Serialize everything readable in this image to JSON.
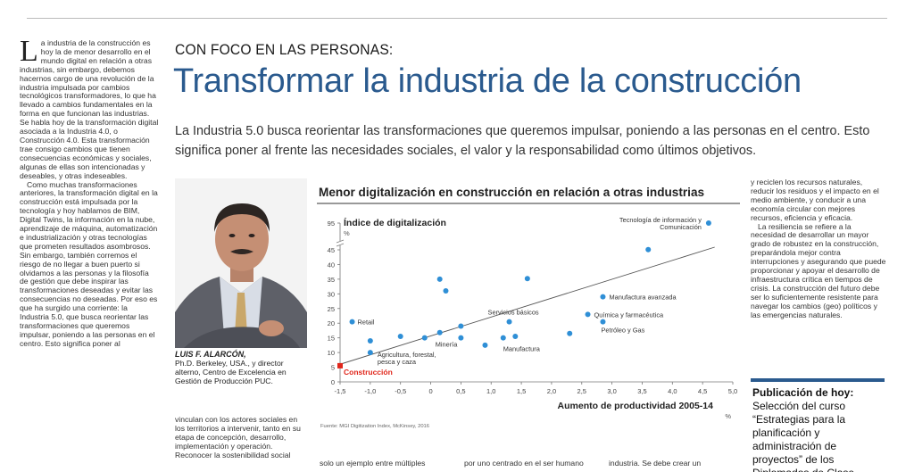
{
  "article": {
    "left_column_paragraph_1": "a industria de la construcción es hoy la de menor desarrollo en el mundo digital en relación a otras industrias, sin embargo, debemos hacernos cargo de una revolución de la industria impulsada por cambios tecnológicos transformadores, lo que ha llevado a cambios fundamentales en la forma en que funcionan las industrias. Se habla hoy de la transformación digital asociada a la Industria 4.0, o Construcción 4.0. Esta transformación trae consigo cambios que tienen consecuencias económicas y sociales, algunas de ellas son intencionadas y deseables, y otras indeseables.",
    "left_column_dropcap": "L",
    "left_column_paragraph_2": "Como muchas transformaciones anteriores, la transformación digital en la construcción está impulsada por la tecnología y hoy hablamos de BIM, Digital Twins, la información en la nube, aprendizaje de máquina, automatización e industrialización y otras tecnologías que prometen resultados asombrosos. Sin embargo, también corremos el riesgo de no llegar a buen puerto si olvidamos a las personas y la filosofía de gestión que debe inspirar las transformaciones deseadas y evitar las consecuencias no deseadas. Por eso es que ha surgido una corriente: la Industria 5.0, que busca reorientar las transformaciones que queremos impulsar, poniendo a las personas en el centro. Esto significa poner al",
    "kicker": "CON FOCO EN LAS PERSONAS:",
    "headline": "Transformar la industria de la construcción",
    "deck": "La Industria 5.0 busca reorientar las transformaciones que queremos impulsar, poniendo a las personas en el centro. Esto significa poner al frente las necesidades sociales, el valor y la responsabilidad como últimos objetivos.",
    "author_name": "LUIS F. ALARCÓN,",
    "author_bio": "Ph.D. Berkeley, USA., y director alterno, Centro de Excelencia en Gestión de Producción PUC.",
    "mid_column_text": "vinculan con los actores sociales en los territorios a intervenir, tanto en su etapa de concepción, desarrollo, implementación y operación. Reconocer la sostenibilidad social",
    "bottom_col_2": "solo un ejemplo entre múltiples",
    "bottom_col_3": "por uno centrado en el ser humano",
    "bottom_col_4": "industria. Se debe crear un",
    "right_column_paragraph_1": "y reciclen los recursos naturales, reducir los residuos y el impacto en el medio ambiente, y conducir a una economía circular con mejores recursos, eficiencia y eficacia.",
    "right_column_paragraph_2": "La resiliencia se refiere a la necesidad de desarrollar un mayor grado de robustez en la construcción, preparándola mejor contra interrupciones y asegurando que puede proporcionar y apoyar el desarrollo de infraestructura crítica en tiempos de crisis. La construcción del futuro debe ser lo suficientemente resistente para navegar los cambios (geo) políticos y las emergencias naturales.",
    "publication_heading": "Publicación de hoy:",
    "publication_text": "Selección del curso “Estrategias para la planificación y administración de proyectos” de los Diplomados de Clase"
  },
  "chart_data": {
    "type": "scatter",
    "title": "Menor digitalización en construcción en relación a otras industrias",
    "ylabel": "Índice de digitalización",
    "y_unit": "%",
    "xlabel": "Aumento de productividad   2005-14",
    "x_unit": "%",
    "source": "Fuente: MGI Digitization Index, McKinsey, 2016",
    "xlim": [
      -1.5,
      5.0
    ],
    "x_ticks": [
      "-1,5",
      "-1,0",
      "-0,5",
      "0",
      "0,5",
      "1,0",
      "1,5",
      "2,0",
      "2,5",
      "3,0",
      "3,5",
      "4,0",
      "4,5",
      "5,0"
    ],
    "y_ticks": [
      "0",
      "5",
      "10",
      "15",
      "20",
      "25",
      "30",
      "35",
      "40",
      "45",
      "95"
    ],
    "y_break": "45 to 95",
    "trendline": [
      [
        -1.5,
        6
      ],
      [
        4.7,
        50
      ]
    ],
    "points": [
      {
        "x": -1.5,
        "y": 5.5,
        "label": "Construcción",
        "highlight": true
      },
      {
        "x": -1.3,
        "y": 20.5,
        "label": "Retail"
      },
      {
        "x": -1.0,
        "y": 10,
        "label": "Agricultura, forestal, pesca y caza"
      },
      {
        "x": -1.0,
        "y": 14,
        "label": ""
      },
      {
        "x": -0.5,
        "y": 15.5,
        "label": ""
      },
      {
        "x": -0.1,
        "y": 15,
        "label": ""
      },
      {
        "x": 0.15,
        "y": 16.8,
        "label": "Minería"
      },
      {
        "x": 0.15,
        "y": 35,
        "label": ""
      },
      {
        "x": 0.25,
        "y": 31,
        "label": ""
      },
      {
        "x": 0.5,
        "y": 19,
        "label": ""
      },
      {
        "x": 0.5,
        "y": 15,
        "label": ""
      },
      {
        "x": 0.9,
        "y": 12.5,
        "label": ""
      },
      {
        "x": 1.2,
        "y": 15,
        "label": "Manufactura"
      },
      {
        "x": 1.3,
        "y": 20.5,
        "label": "Servicios básicos"
      },
      {
        "x": 1.4,
        "y": 15.5,
        "label": ""
      },
      {
        "x": 1.6,
        "y": 35.2,
        "label": ""
      },
      {
        "x": 2.3,
        "y": 16.5,
        "label": ""
      },
      {
        "x": 2.6,
        "y": 23,
        "label": "Química y farmacéutica"
      },
      {
        "x": 2.85,
        "y": 29,
        "label": "Manufactura avanzada"
      },
      {
        "x": 2.85,
        "y": 20.5,
        "label": "Petróleo y Gas"
      },
      {
        "x": 3.6,
        "y": 45.5,
        "label": ""
      },
      {
        "x": 4.6,
        "y": 95,
        "label": "Tecnología de información y Comunicación"
      }
    ]
  },
  "colors": {
    "headline": "#2a5a8e",
    "point": "#2f8fd6",
    "highlight": "#e0261b",
    "rule": "#2a5a8e"
  }
}
